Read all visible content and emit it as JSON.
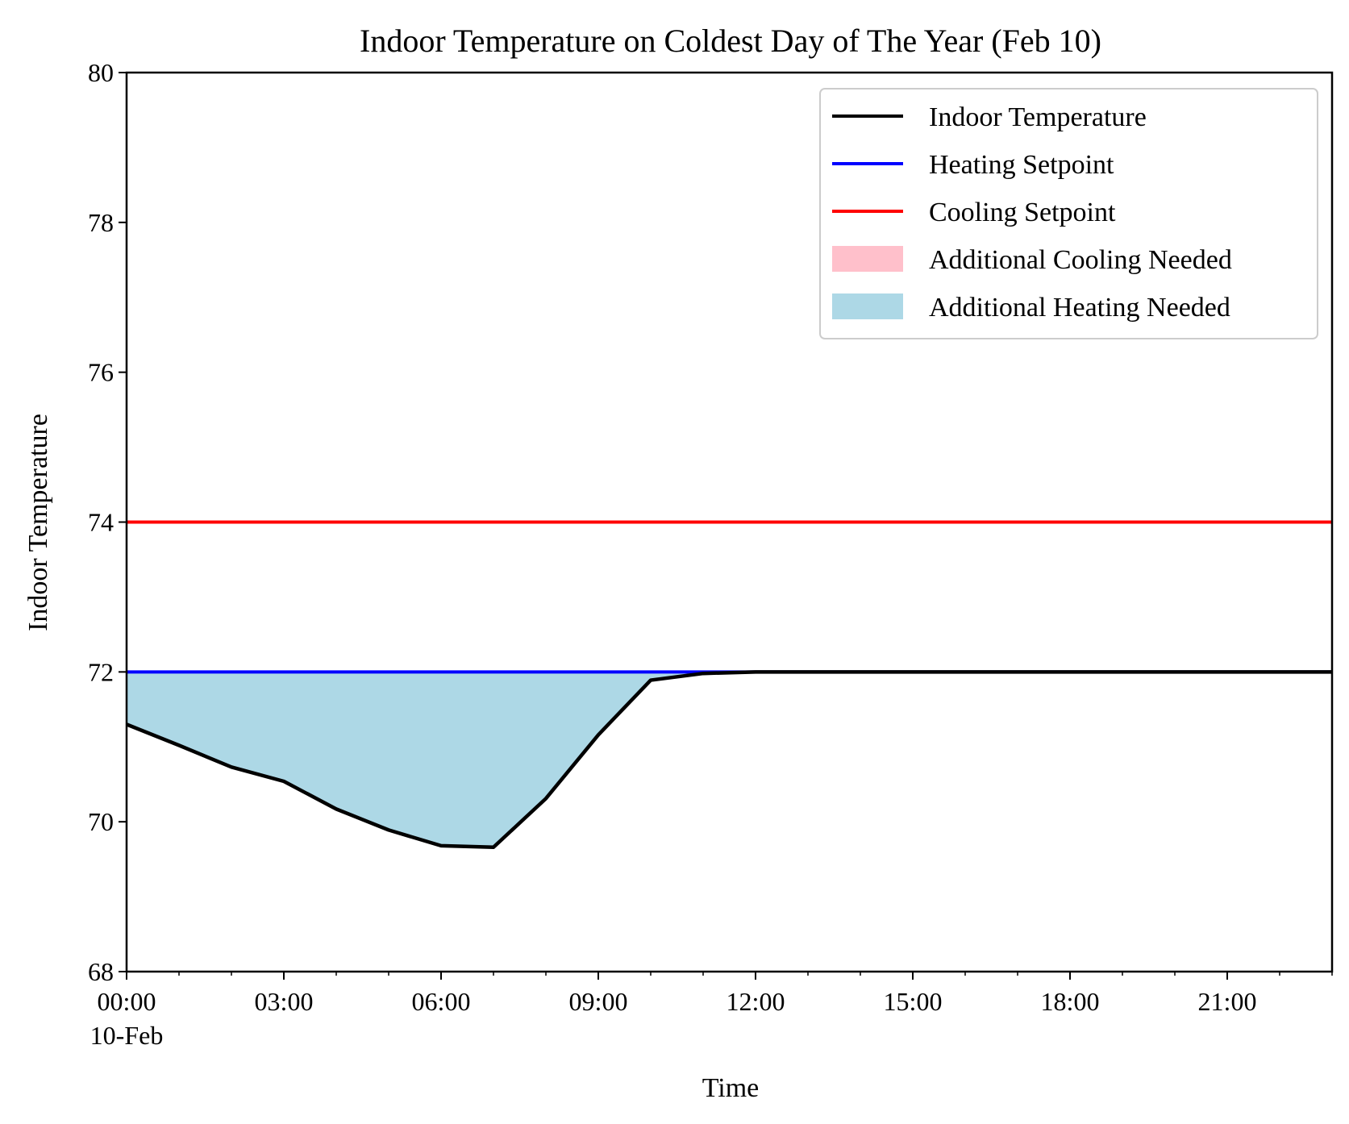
{
  "chart_data": {
    "type": "line",
    "title": "Indoor Temperature on Coldest Day of The Year (Feb 10)",
    "xlabel": "Time",
    "ylabel": "Indoor Temperature",
    "xlim": [
      0,
      23
    ],
    "ylim": [
      68,
      80
    ],
    "grid": false,
    "legend_placement": "top-right",
    "x_ticks": [
      {
        "value": 0,
        "label": "00:00",
        "sublabel": "10-Feb"
      },
      {
        "value": 3,
        "label": "03:00"
      },
      {
        "value": 6,
        "label": "06:00"
      },
      {
        "value": 9,
        "label": "09:00"
      },
      {
        "value": 12,
        "label": "12:00"
      },
      {
        "value": 15,
        "label": "15:00"
      },
      {
        "value": 18,
        "label": "18:00"
      },
      {
        "value": 21,
        "label": "21:00"
      }
    ],
    "y_ticks": [
      68,
      70,
      72,
      74,
      76,
      78,
      80
    ],
    "series": [
      {
        "name": "Indoor Temperature",
        "color": "#000000",
        "x": [
          0,
          1,
          2,
          3,
          4,
          5,
          6,
          7,
          8,
          9,
          10,
          11,
          12,
          13,
          14,
          15,
          16,
          17,
          18,
          19,
          20,
          21,
          22,
          23
        ],
        "values": [
          71.3,
          71.02,
          70.73,
          70.54,
          70.17,
          69.89,
          69.68,
          69.66,
          70.31,
          71.16,
          71.89,
          71.98,
          72,
          72,
          72,
          72,
          72,
          72,
          72,
          72,
          72,
          72,
          72,
          72
        ]
      },
      {
        "name": "Heating Setpoint",
        "color": "#0000ff",
        "x": [
          0,
          23
        ],
        "values": [
          72,
          72
        ]
      },
      {
        "name": "Cooling Setpoint",
        "color": "#ff0000",
        "x": [
          0,
          23
        ],
        "values": [
          74,
          74
        ]
      }
    ],
    "fills": [
      {
        "name": "Additional Cooling Needed",
        "color": "#ffc0cb"
      },
      {
        "name": "Additional Heating Needed",
        "color": "#add8e6"
      }
    ]
  }
}
